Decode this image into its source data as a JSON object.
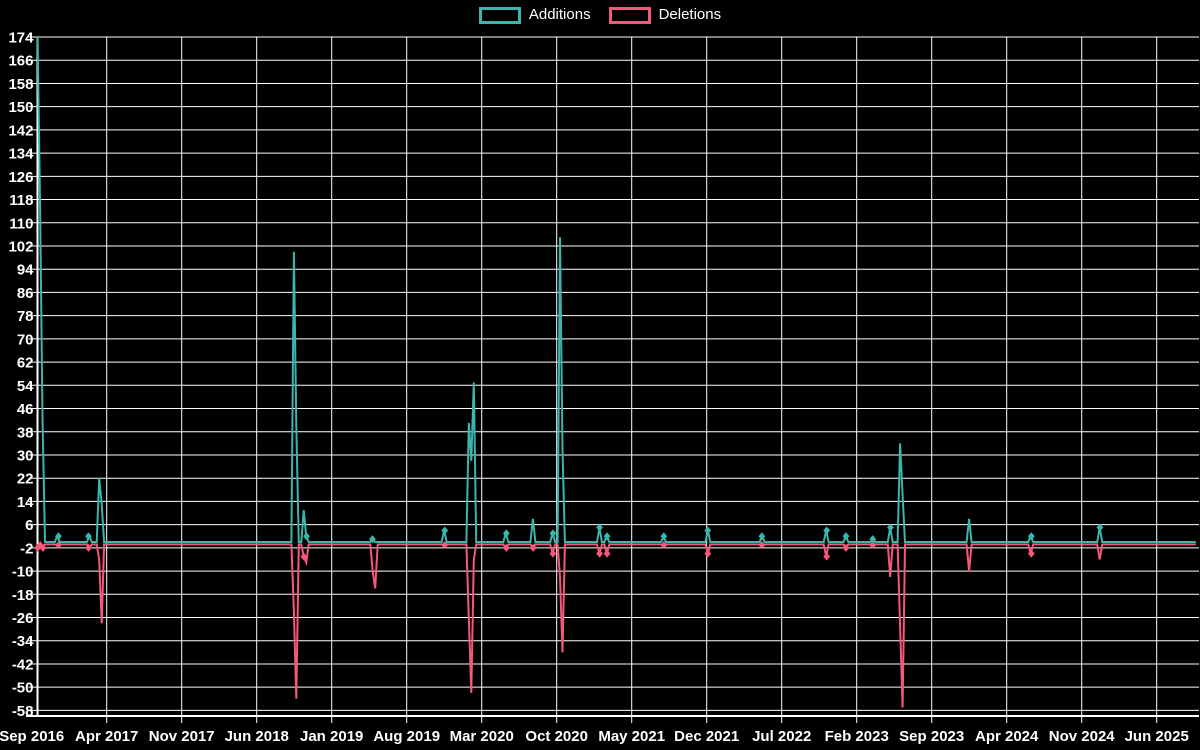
{
  "chart_data": {
    "type": "line",
    "title": "",
    "legend": [
      {
        "label": "Additions",
        "color": "#3cb5ad"
      },
      {
        "label": "Deletions",
        "color": "#f4587a"
      }
    ],
    "colors": {
      "additions": "#3cb5ad",
      "deletions": "#f4587a",
      "grid": "#ffffff",
      "axis": "#ffffff",
      "text": "#ffffff",
      "background": "#000000"
    },
    "layout_hints": {
      "grid": true,
      "legend_position": "top-center",
      "x_tick_interval_months": 7
    },
    "x_axis": {
      "tick_labels": [
        "Sep 2016",
        "Apr 2017",
        "Nov 2017",
        "Jun 2018",
        "Jan 2019",
        "Aug 2019",
        "Mar 2020",
        "Oct 2020",
        "May 2021",
        "Dec 2021",
        "Jul 2022",
        "Feb 2023",
        "Sep 2023",
        "Apr 2024",
        "Nov 2024",
        "Jun 2025"
      ]
    },
    "y_axis": {
      "min": -58,
      "max": 174,
      "step": 8,
      "tick_labels": [
        174,
        166,
        158,
        150,
        142,
        134,
        126,
        118,
        110,
        102,
        94,
        86,
        78,
        70,
        62,
        54,
        46,
        38,
        30,
        22,
        14,
        6,
        -2,
        -10,
        -18,
        -26,
        -34,
        -42,
        -50,
        -58
      ]
    },
    "baseline": {
      "additions": 0,
      "deletions": -0.8
    },
    "events": [
      {
        "date": "Sep 2016",
        "m": 0.55,
        "additions": 174,
        "deletions": -2
      },
      {
        "date": "Sep 2016",
        "m": 0.8,
        "additions": 115,
        "deletions": -1
      },
      {
        "date": "Oct 2016",
        "m": 1.05,
        "additions": 43,
        "deletions": -2
      },
      {
        "date": "Nov 2016",
        "m": 2.5,
        "additions": 2,
        "deletions": -1
      },
      {
        "date": "Feb 2017",
        "m": 5.3,
        "additions": 2,
        "deletions": -2
      },
      {
        "date": "Mar 2017",
        "m": 6.3,
        "additions": 22,
        "deletions": -6
      },
      {
        "date": "Mar 2017",
        "m": 6.55,
        "additions": 13,
        "deletions": -28
      },
      {
        "date": "Sep 2018",
        "m": 24.45,
        "additions": 100,
        "deletions": -24
      },
      {
        "date": "Sep 2018",
        "m": 24.7,
        "additions": 40,
        "deletions": -54
      },
      {
        "date": "Oct 2018",
        "m": 25.4,
        "additions": 11,
        "deletions": -5
      },
      {
        "date": "Oct 2018",
        "m": 25.65,
        "additions": 2,
        "deletions": -7
      },
      {
        "date": "Apr 2019",
        "m": 31.8,
        "additions": 1,
        "deletions": -10
      },
      {
        "date": "May 2019",
        "m": 32.05,
        "additions": 0,
        "deletions": -16
      },
      {
        "date": "Nov 2019",
        "m": 38.55,
        "additions": 4,
        "deletions": -1
      },
      {
        "date": "Feb 2020",
        "m": 40.85,
        "additions": 41,
        "deletions": -26
      },
      {
        "date": "Feb 2020",
        "m": 41.1,
        "additions": 28,
        "deletions": -52
      },
      {
        "date": "Mar 2020",
        "m": 41.35,
        "additions": 55,
        "deletions": -6
      },
      {
        "date": "May 2020",
        "m": 44.3,
        "additions": 3,
        "deletions": -2
      },
      {
        "date": "Aug 2020",
        "m": 46.8,
        "additions": 8,
        "deletions": -2
      },
      {
        "date": "Sep 2020",
        "m": 48.65,
        "additions": 3,
        "deletions": -4
      },
      {
        "date": "Oct 2020",
        "m": 49.3,
        "additions": 105,
        "deletions": -12
      },
      {
        "date": "Oct 2020",
        "m": 49.55,
        "additions": 32,
        "deletions": -38
      },
      {
        "date": "Feb 2021",
        "m": 53.0,
        "additions": 5,
        "deletions": -4
      },
      {
        "date": "Feb 2021",
        "m": 53.7,
        "additions": 2,
        "deletions": -4
      },
      {
        "date": "Aug 2021",
        "m": 59.0,
        "additions": 2,
        "deletions": -1
      },
      {
        "date": "Dec 2021",
        "m": 63.1,
        "additions": 4,
        "deletions": -4
      },
      {
        "date": "May 2022",
        "m": 68.15,
        "additions": 2,
        "deletions": -1
      },
      {
        "date": "Nov 2022",
        "m": 74.2,
        "additions": 4,
        "deletions": -5
      },
      {
        "date": "Jan 2023",
        "m": 76.0,
        "additions": 2,
        "deletions": -2
      },
      {
        "date": "Mar 2023",
        "m": 78.5,
        "additions": 1,
        "deletions": -1
      },
      {
        "date": "May 2023",
        "m": 80.15,
        "additions": 5,
        "deletions": -12
      },
      {
        "date": "Jun 2023",
        "m": 81.05,
        "additions": 34,
        "deletions": -29
      },
      {
        "date": "Jun 2023",
        "m": 81.3,
        "additions": 16,
        "deletions": -57
      },
      {
        "date": "Dec 2023",
        "m": 87.55,
        "additions": 8,
        "deletions": -10
      },
      {
        "date": "Jun 2024",
        "m": 93.3,
        "additions": 2,
        "deletions": -4
      },
      {
        "date": "Dec 2024",
        "m": 99.7,
        "additions": 5,
        "deletions": -6
      }
    ]
  }
}
